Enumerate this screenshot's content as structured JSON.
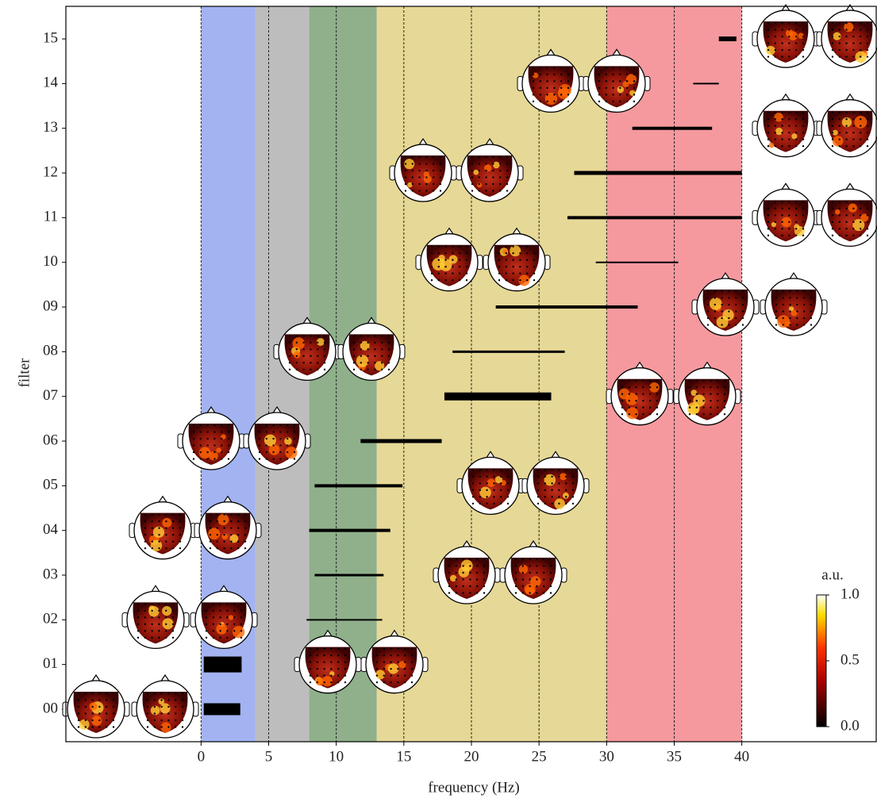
{
  "chart_data": {
    "type": "range",
    "x_label": "frequency (Hz)",
    "y_label": "filter",
    "categories": [
      "00",
      "01",
      "02",
      "03",
      "04",
      "05",
      "06",
      "07",
      "08",
      "09",
      "10",
      "11",
      "12",
      "13",
      "14",
      "15"
    ],
    "starts": [
      0.2,
      0.2,
      7.8,
      8.4,
      8.0,
      8.4,
      11.8,
      18.0,
      18.6,
      21.8,
      29.2,
      27.1,
      27.6,
      31.9,
      36.4,
      38.3
    ],
    "ends": [
      2.9,
      3.0,
      13.4,
      13.5,
      14.0,
      14.9,
      17.8,
      25.9,
      26.9,
      32.3,
      35.3,
      40.0,
      40.0,
      37.8,
      38.3,
      39.6
    ],
    "widths": [
      15,
      20,
      2,
      3,
      4,
      4,
      5,
      10,
      3,
      4,
      2,
      4,
      5,
      4,
      2,
      6
    ],
    "color": "#000000",
    "xlim": [
      -10,
      50
    ],
    "xticks": [
      0,
      5,
      10,
      15,
      20,
      25,
      30,
      35,
      40
    ],
    "grid": true,
    "bands": [
      {
        "start": 0,
        "end": 4,
        "color": "#a3b3f2"
      },
      {
        "start": 4,
        "end": 8,
        "color": "#bdbdbd"
      },
      {
        "start": 8,
        "end": 13,
        "color": "#8fb08b"
      },
      {
        "start": 13,
        "end": 30,
        "color": "#e6d896"
      },
      {
        "start": 30,
        "end": 40,
        "color": "#f5999e"
      }
    ],
    "colorbar": {
      "label": "a.u.",
      "lim": [
        0,
        1
      ],
      "ticks": [
        {
          "value": 0,
          "label": "0.0"
        },
        0.5,
        {
          "value": 1,
          "label": "1.0"
        }
      ]
    }
  }
}
